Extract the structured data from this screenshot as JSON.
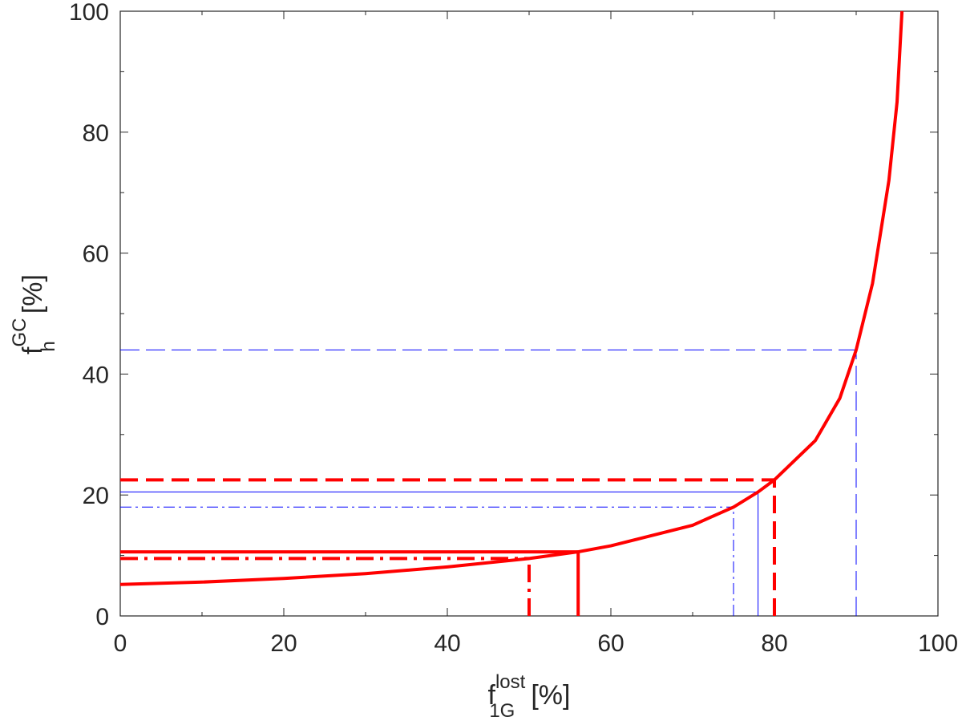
{
  "chart_data": {
    "type": "line",
    "xlabel": {
      "base": "f",
      "sup": "lost",
      "sub": "1G",
      "unit": "[%]"
    },
    "ylabel": {
      "base": "f",
      "sup": "GC",
      "sub": "h",
      "unit": "[%]"
    },
    "xlim": [
      0,
      100
    ],
    "ylim": [
      0,
      100
    ],
    "xticks": [
      0,
      20,
      40,
      60,
      80,
      100
    ],
    "yticks": [
      0,
      20,
      40,
      60,
      80,
      100
    ],
    "xminorticks": [
      10,
      30,
      50,
      70,
      90
    ],
    "yminorticks": [
      10,
      30,
      50,
      70,
      90
    ],
    "series": [
      {
        "color": "#ff0000",
        "x": [
          0,
          10,
          20,
          30,
          40,
          50,
          56,
          60,
          70,
          75,
          78,
          80,
          85,
          88,
          90,
          92,
          94,
          95,
          95.6
        ],
        "values": [
          5.2,
          5.6,
          6.2,
          7.0,
          8.1,
          9.5,
          10.6,
          11.6,
          15.0,
          18.0,
          20.5,
          22.5,
          29,
          36,
          44,
          55,
          72,
          85,
          100
        ]
      }
    ],
    "guides": [
      {
        "x": 56,
        "y": 10.6,
        "color": "#ff0000",
        "dash": "solid",
        "width": 4
      },
      {
        "x": 50,
        "y": 9.5,
        "color": "#ff0000",
        "dash": "dashdot",
        "width": 4
      },
      {
        "x": 80,
        "y": 22.5,
        "color": "#ff0000",
        "dash": "dashed",
        "width": 4
      },
      {
        "x": 78,
        "y": 20.5,
        "color": "#0000ff",
        "dash": "solid",
        "width": 1
      },
      {
        "x": 75,
        "y": 18,
        "color": "#0000ff",
        "dash": "dashdot",
        "width": 1
      },
      {
        "x": 90,
        "y": 44,
        "color": "#0000ff",
        "dash": "dashed",
        "width": 1
      }
    ]
  }
}
